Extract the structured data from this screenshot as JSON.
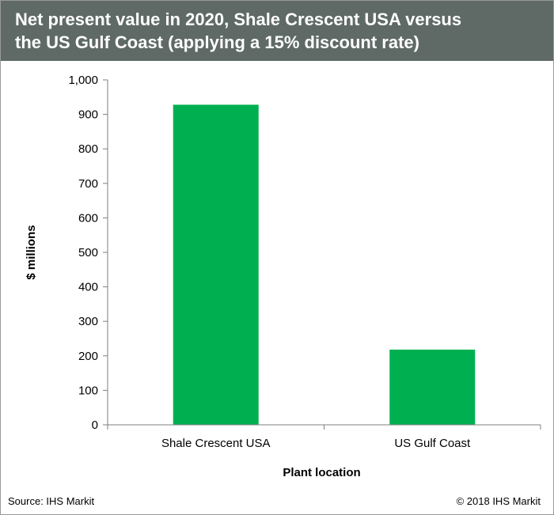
{
  "header": {
    "title": "Net present value in 2020, Shale Crescent USA versus\nthe US Gulf  Coast (applying  a 15% discount  rate)"
  },
  "footer": {
    "source": "Source:  IHS Markit",
    "copyright": "© 2018  IHS Markit"
  },
  "chart_data": {
    "type": "bar",
    "title": "Net present value in 2020, Shale Crescent USA versus the US Gulf Coast (applying a 15% discount rate)",
    "categories": [
      "Shale Crescent USA",
      "US Gulf Coast"
    ],
    "values": [
      928,
      218
    ],
    "xlabel": "Plant location",
    "ylabel": "$ millions",
    "ylim": [
      0,
      1000
    ],
    "yticks": [
      0,
      100,
      200,
      300,
      400,
      500,
      600,
      700,
      800,
      900,
      1000
    ],
    "ytick_labels": [
      "0",
      "100",
      "200",
      "300",
      "400",
      "500",
      "600",
      "700",
      "800",
      "900",
      "1,000"
    ],
    "bar_color": "#00b050",
    "grid": false,
    "legend": "none"
  }
}
